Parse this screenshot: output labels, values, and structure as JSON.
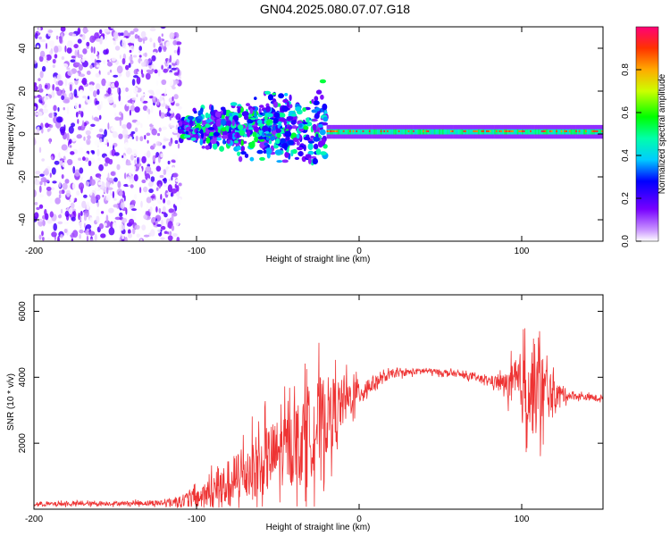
{
  "title": "GN04.2025.080.07.07.G18",
  "chart_data": [
    {
      "type": "heatmap",
      "xlabel": "Height of straight line (km)",
      "ylabel": "Frequency (Hz)",
      "xlim": [
        -200,
        150
      ],
      "ylim": [
        -50,
        50
      ],
      "xticks": [
        "-200",
        "-100",
        "0",
        "100"
      ],
      "yticks": [
        "-40",
        "-20",
        "0",
        "20",
        "40"
      ],
      "colorbar": {
        "label": "Normalized spectral amplitude",
        "range": [
          0,
          1
        ],
        "ticks": [
          "0.0",
          "0.2",
          "0.4",
          "0.6",
          "0.8"
        ]
      },
      "regions": [
        {
          "x_range": [
            -200,
            -110
          ],
          "freq_range": [
            -50,
            50
          ],
          "amplitude": "low, scattered noise"
        },
        {
          "x_range": [
            -110,
            -20
          ],
          "freq_center": 3,
          "freq_spread": 12,
          "amplitude": "medium, clustered"
        },
        {
          "x_range": [
            -20,
            150
          ],
          "freq_center": 1,
          "freq_spread": 2,
          "amplitude": "high, coherent tone"
        }
      ],
      "grid": false
    },
    {
      "type": "line",
      "xlabel": "Height of straight line (km)",
      "ylabel": "SNR (10 * v/v)",
      "xlim": [
        -200,
        150
      ],
      "ylim": [
        0,
        6500
      ],
      "xticks": [
        "-200",
        "-100",
        "0",
        "100"
      ],
      "yticks": [
        "2000",
        "4000",
        "6000"
      ],
      "series": [
        {
          "color": "#ee3333",
          "x": [
            -200,
            -180,
            -160,
            -140,
            -120,
            -110,
            -100,
            -90,
            -80,
            -70,
            -60,
            -50,
            -40,
            -30,
            -25,
            -20,
            -15,
            -10,
            -5,
            0,
            5,
            10,
            20,
            30,
            40,
            50,
            60,
            70,
            80,
            90,
            100,
            105,
            110,
            115,
            120,
            130,
            140,
            150
          ],
          "y": [
            150,
            160,
            170,
            180,
            190,
            250,
            350,
            500,
            800,
            1100,
            1400,
            1700,
            2000,
            2300,
            2600,
            2800,
            3000,
            3200,
            3400,
            3550,
            3700,
            3850,
            4100,
            4150,
            4200,
            4150,
            4100,
            4000,
            3900,
            3800,
            3700,
            3650,
            3600,
            3550,
            3500,
            3450,
            3400,
            3350
          ],
          "noise_amplitude": [
            80,
            80,
            80,
            80,
            120,
            250,
            400,
            700,
            900,
            1100,
            1300,
            1300,
            1500,
            1700,
            1800,
            1500,
            1300,
            900,
            700,
            500,
            400,
            250,
            150,
            120,
            110,
            110,
            110,
            120,
            150,
            400,
            1400,
            1700,
            1800,
            1200,
            500,
            150,
            120,
            110
          ]
        }
      ],
      "grid": false
    }
  ]
}
